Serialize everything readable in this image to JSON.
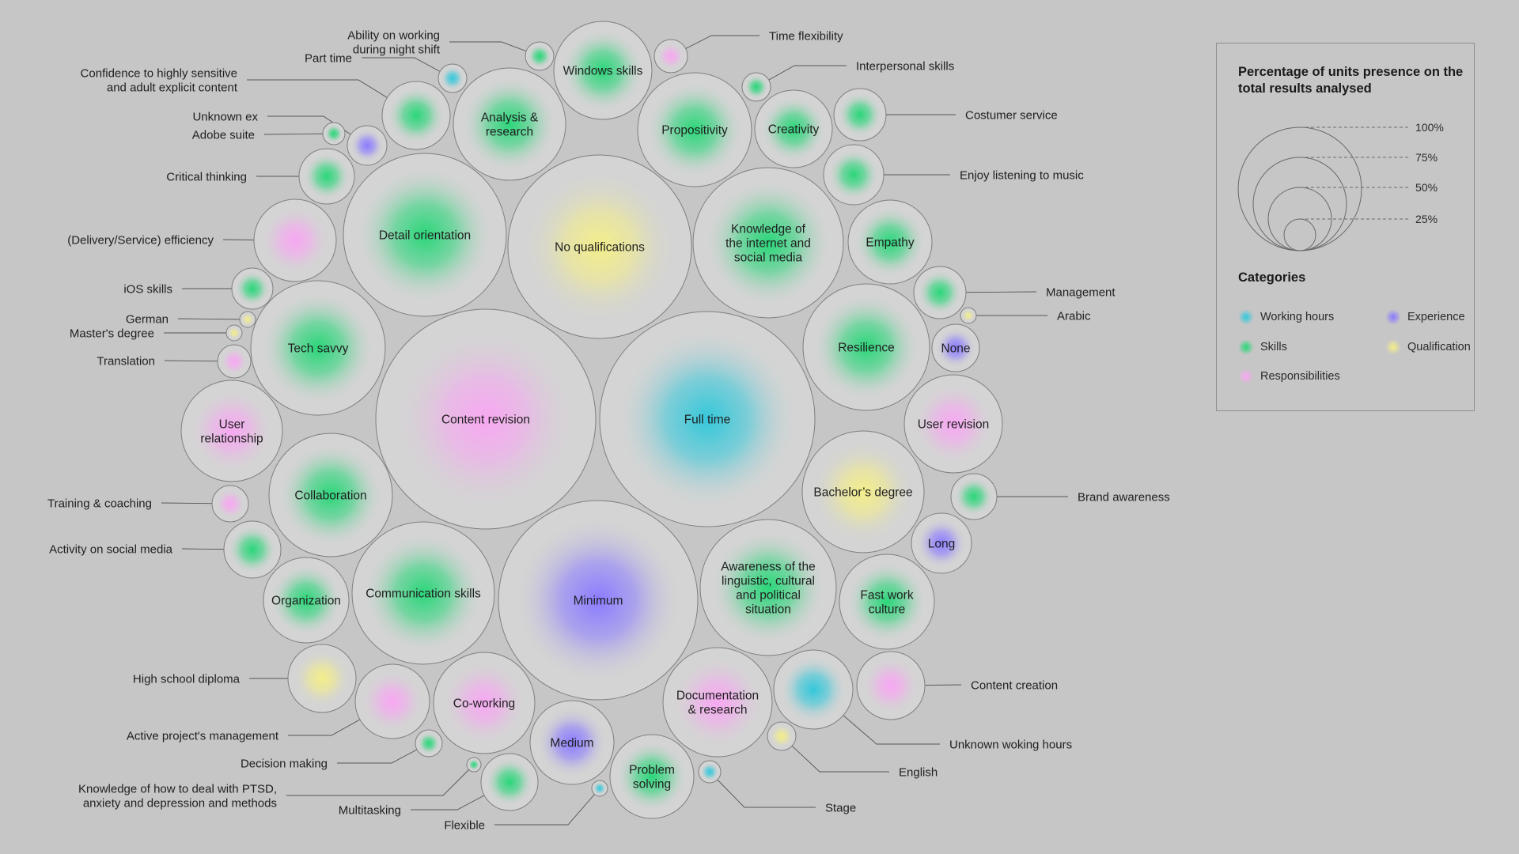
{
  "legend": {
    "title": "Percentage of units presence on the total results analysed",
    "size_levels": [
      "100%",
      "75%",
      "50%",
      "25%"
    ],
    "categories_title": "Categories",
    "categories": [
      {
        "key": "hours",
        "label": "Working hours"
      },
      {
        "key": "experience",
        "label": "Experience"
      },
      {
        "key": "skills",
        "label": "Skills"
      },
      {
        "key": "qualification",
        "label": "Qualification"
      },
      {
        "key": "resp",
        "label": "Responsibilities"
      }
    ]
  },
  "colors": {
    "hours": "#35c8da",
    "experience": "#8b7cff",
    "skills": "#2bd67a",
    "qualification": "#f3ee8a",
    "resp": "#f7a8f2",
    "bubble_fill": "#d4d4d4",
    "bubble_stroke": "#7f7f7f",
    "background": "#c6c6c6"
  },
  "chart_data": {
    "type": "bubble",
    "title": "",
    "units": [
      {
        "label": "Full time",
        "category": "hours"
      },
      {
        "label": "Content revision",
        "category": "resp"
      },
      {
        "label": "No qualifications",
        "category": "qualification"
      },
      {
        "label": "Minimum",
        "category": "experience"
      },
      {
        "label": "Detail orientation",
        "category": "skills"
      },
      {
        "label": "Knowledge of the internet and social media",
        "category": "skills"
      },
      {
        "label": "Communication skills",
        "category": "skills"
      },
      {
        "label": "Awareness of the linguistic, cultural and political situation",
        "category": "skills"
      },
      {
        "label": "Tech savvy",
        "category": "skills"
      },
      {
        "label": "Resilience",
        "category": "skills"
      },
      {
        "label": "Collaboration",
        "category": "skills"
      },
      {
        "label": "Bachelor’s degree",
        "category": "qualification"
      },
      {
        "label": "Propositivity",
        "category": "skills"
      },
      {
        "label": "Analysis & research",
        "category": "skills"
      },
      {
        "label": "Documentation & research",
        "category": "resp"
      },
      {
        "label": "Co-working",
        "category": "resp"
      },
      {
        "label": "User relationship",
        "category": "resp"
      },
      {
        "label": "Windows skills",
        "category": "skills"
      },
      {
        "label": "Problem solving",
        "category": "skills"
      },
      {
        "label": "Empathy",
        "category": "skills"
      },
      {
        "label": "User revision",
        "category": "resp"
      },
      {
        "label": "Medium",
        "category": "experience"
      },
      {
        "label": "Fast work culture",
        "category": "skills"
      },
      {
        "label": "Organization",
        "category": "skills"
      },
      {
        "label": "(Delivery/Service) efficiency",
        "category": "resp"
      },
      {
        "label": "Creativity",
        "category": "skills"
      },
      {
        "label": "Unknown woking hours",
        "category": "hours"
      },
      {
        "label": "Confidence to highly sensitive and adult explicit content",
        "category": "skills"
      },
      {
        "label": "Active project's management",
        "category": "resp"
      },
      {
        "label": "Content creation",
        "category": "resp"
      },
      {
        "label": "High school diploma",
        "category": "qualification"
      },
      {
        "label": "Costumer service",
        "category": "skills"
      },
      {
        "label": "Enjoy listening to music",
        "category": "skills"
      },
      {
        "label": "Activity on social media",
        "category": "skills"
      },
      {
        "label": "Long",
        "category": "experience"
      },
      {
        "label": "None",
        "category": "experience"
      },
      {
        "label": "Critical thinking",
        "category": "skills"
      },
      {
        "label": "Multitasking",
        "category": "skills"
      },
      {
        "label": "Management",
        "category": "skills"
      },
      {
        "label": "Brand awareness",
        "category": "skills"
      },
      {
        "label": "iOS skills",
        "category": "skills"
      },
      {
        "label": "Unknown ex",
        "category": "experience"
      },
      {
        "label": "Translation",
        "category": "resp"
      },
      {
        "label": "Training & coaching",
        "category": "resp"
      },
      {
        "label": "Time flexibility",
        "category": "resp"
      },
      {
        "label": "Interpersonal skills",
        "category": "skills"
      },
      {
        "label": "Part time",
        "category": "hours"
      },
      {
        "label": "Ability on working during night shift",
        "category": "skills"
      },
      {
        "label": "English",
        "category": "qualification"
      },
      {
        "label": "Decision making",
        "category": "skills"
      },
      {
        "label": "Stage",
        "category": "hours"
      },
      {
        "label": "Adobe suite",
        "category": "skills"
      },
      {
        "label": "Master's degree",
        "category": "qualification"
      },
      {
        "label": "German",
        "category": "qualification"
      },
      {
        "label": "Arabic",
        "category": "qualification"
      },
      {
        "label": "Flexible",
        "category": "hours"
      },
      {
        "label": "Knowledge of how to deal with PTSD, anxiety and depression and methods",
        "category": "skills"
      }
    ]
  }
}
